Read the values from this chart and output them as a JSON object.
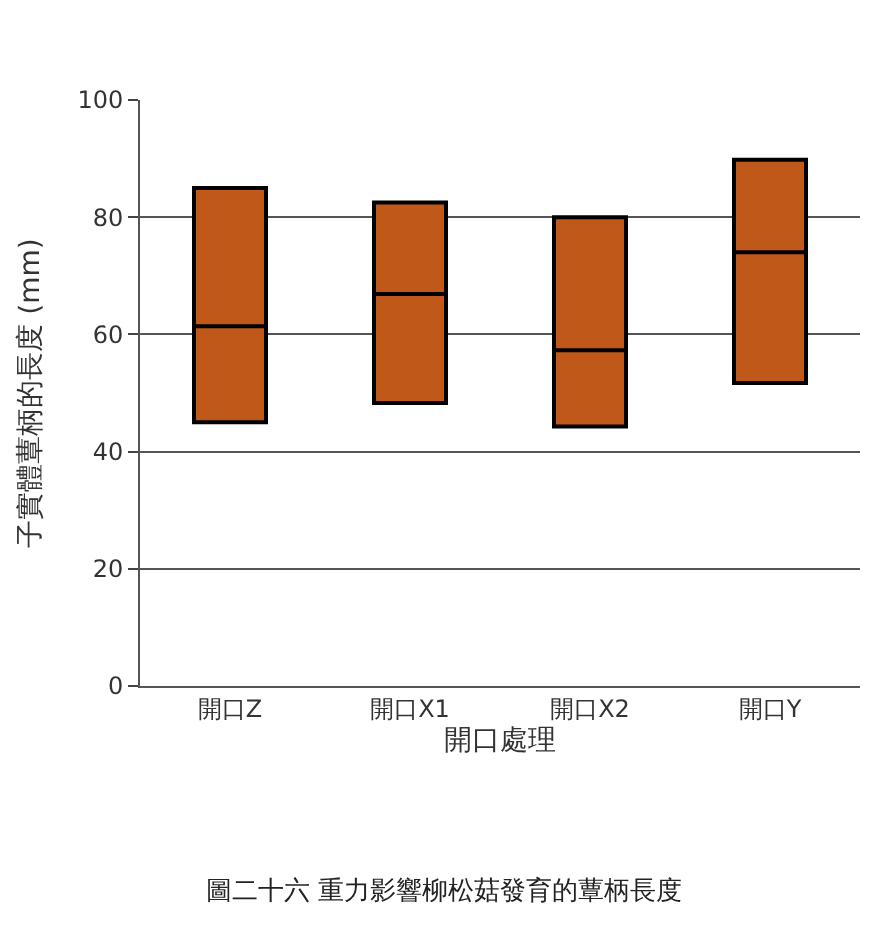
{
  "chart_data": {
    "type": "box",
    "title": "圖二十六 重力影響柳松菇發育的蕈柄長度",
    "xlabel": "開口處理",
    "ylabel": "子實體蕈柄的長度 (mm)",
    "categories": [
      "開口Z",
      "開口X1",
      "開口X2",
      "開口Y"
    ],
    "boxes": [
      {
        "q1": 45,
        "median": 61.4,
        "q3": 85
      },
      {
        "q1": 48.3,
        "median": 66.9,
        "q3": 82.5
      },
      {
        "q1": 44.3,
        "median": 57.3,
        "q3": 80
      },
      {
        "q1": 51.7,
        "median": 74,
        "q3": 89.8
      }
    ],
    "color": "#c0581a",
    "ylim": [
      0,
      100
    ],
    "yticks": [
      0,
      20,
      40,
      60,
      80,
      100
    ],
    "grid": "y"
  }
}
